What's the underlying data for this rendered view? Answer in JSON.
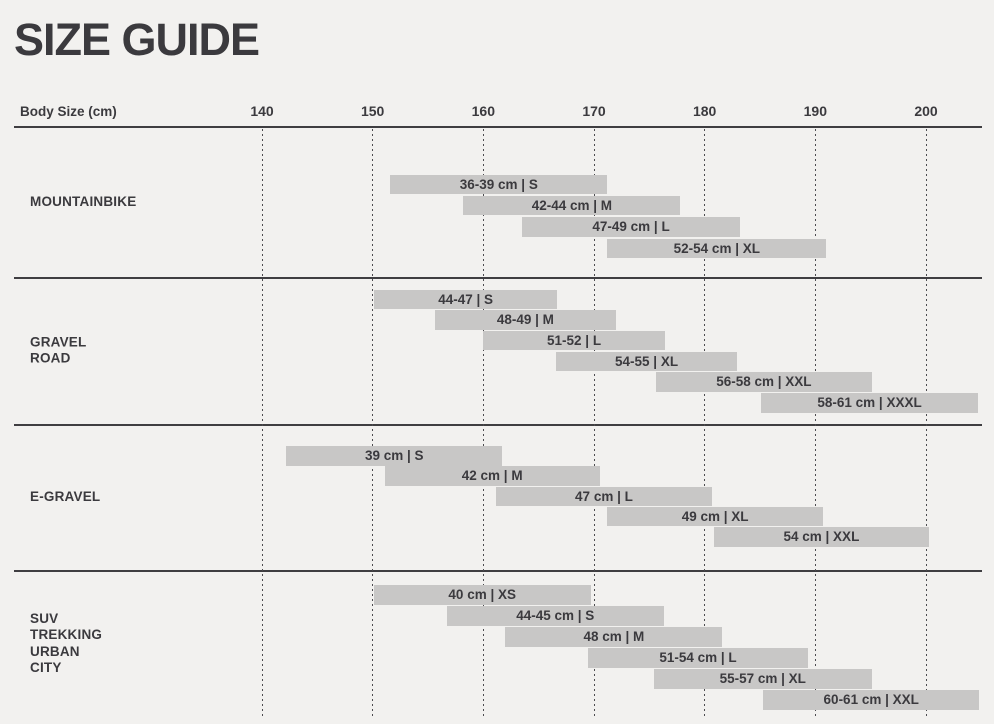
{
  "page_title": "SIZE GUIDE",
  "colors": {
    "background": "#f2f1ef",
    "bar": "#c8c7c6",
    "text": "#3b3a3e",
    "line": "#3f3e41",
    "grid_dot": "#4c4b4f"
  },
  "chart_data": {
    "type": "bar",
    "variant": "horizontal-range-bars",
    "title": "SIZE GUIDE",
    "xlabel": "Body Size (cm)",
    "x_ticks": [
      140,
      150,
      160,
      170,
      180,
      190,
      200
    ],
    "xlim": [
      117.6,
      205.1
    ],
    "grid": "dotted-vertical-lines-at-each-tick",
    "legend": "none",
    "bar_unit": "body height range in cm",
    "sections": [
      {
        "name": "MOUNTAINBIKE",
        "name_lines": [
          "MOUNTAINBIKE"
        ],
        "bars": [
          {
            "label": "36-39 cm | S",
            "frame": "36-39 cm",
            "size": "S",
            "from": 151.6,
            "to": 171.2
          },
          {
            "label": "42-44 cm | M",
            "frame": "42-44 cm",
            "size": "M",
            "from": 158.2,
            "to": 177.8
          },
          {
            "label": "47-49 cm | L",
            "frame": "47-49 cm",
            "size": "L",
            "from": 163.5,
            "to": 183.2
          },
          {
            "label": "52-54 cm | XL",
            "frame": "52-54 cm",
            "size": "XL",
            "from": 171.2,
            "to": 191.0
          }
        ]
      },
      {
        "name": "GRAVEL ROAD",
        "name_lines": [
          "GRAVEL",
          "ROAD"
        ],
        "bars": [
          {
            "label": "44-47 | S",
            "frame": "44-47",
            "size": "S",
            "from": 150.1,
            "to": 166.7
          },
          {
            "label": "48-49 | M",
            "frame": "48-49",
            "size": "M",
            "from": 155.6,
            "to": 172.0
          },
          {
            "label": "51-52 | L",
            "frame": "51-52",
            "size": "L",
            "from": 160.0,
            "to": 176.4
          },
          {
            "label": "54-55 | XL",
            "frame": "54-55",
            "size": "XL",
            "from": 166.6,
            "to": 182.9
          },
          {
            "label": "56-58 cm | XXL",
            "frame": "56-58 cm",
            "size": "XXL",
            "from": 175.6,
            "to": 195.1
          },
          {
            "label": "58-61 cm | XXXL",
            "frame": "58-61 cm",
            "size": "XXXL",
            "from": 185.1,
            "to": 204.7
          }
        ]
      },
      {
        "name": "E-GRAVEL",
        "name_lines": [
          "E-GRAVEL"
        ],
        "bars": [
          {
            "label": "39 cm | S",
            "frame": "39 cm",
            "size": "S",
            "from": 142.2,
            "to": 161.7
          },
          {
            "label": "42 cm | M",
            "frame": "42 cm",
            "size": "M",
            "from": 151.1,
            "to": 170.5
          },
          {
            "label": "47 cm | L",
            "frame": "47 cm",
            "size": "L",
            "from": 161.1,
            "to": 180.7
          },
          {
            "label": "49 cm | XL",
            "frame": "49 cm",
            "size": "XL",
            "from": 171.2,
            "to": 190.7
          },
          {
            "label": "54 cm | XXL",
            "frame": "54 cm",
            "size": "XXL",
            "from": 180.8,
            "to": 200.3
          }
        ]
      },
      {
        "name": "SUV TREKKING URBAN CITY",
        "name_lines": [
          "SUV",
          "TREKKING",
          "URBAN",
          "CITY"
        ],
        "bars": [
          {
            "label": "40 cm | XS",
            "frame": "40 cm",
            "size": "XS",
            "from": 150.1,
            "to": 169.7
          },
          {
            "label": "44-45 cm | S",
            "frame": "44-45 cm",
            "size": "S",
            "from": 156.7,
            "to": 176.3
          },
          {
            "label": "48 cm | M",
            "frame": "48 cm",
            "size": "M",
            "from": 162.0,
            "to": 181.6
          },
          {
            "label": "51-54 cm | L",
            "frame": "51-54 cm",
            "size": "L",
            "from": 169.5,
            "to": 189.3
          },
          {
            "label": "55-57 cm | XL",
            "frame": "55-57 cm",
            "size": "XL",
            "from": 175.4,
            "to": 195.1
          },
          {
            "label": "60-61 cm | XXL",
            "frame": "60-61 cm",
            "size": "XXL",
            "from": 185.3,
            "to": 204.8
          }
        ]
      }
    ]
  }
}
